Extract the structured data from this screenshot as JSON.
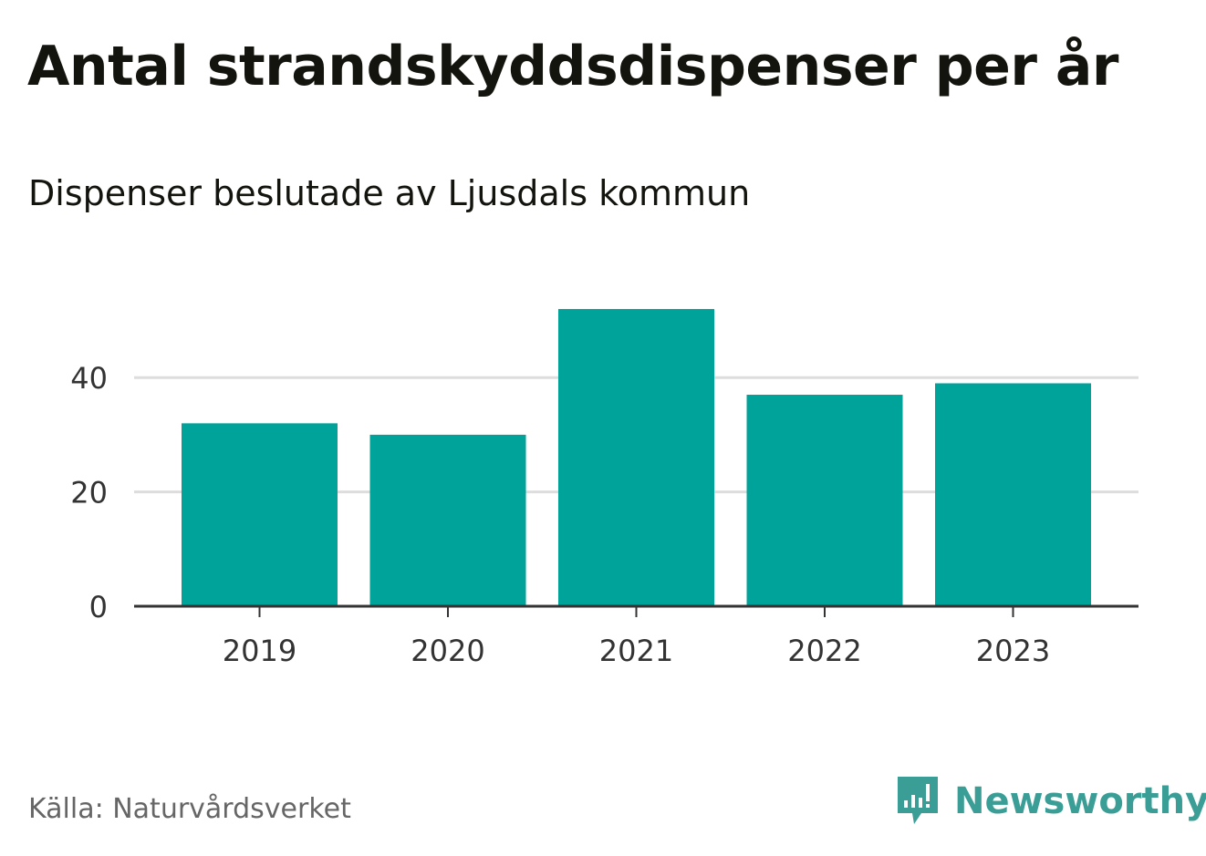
{
  "header": {
    "title": "Antal strandskyddsdispenser per år",
    "subtitle": "Dispenser beslutade av Ljusdals kommun"
  },
  "footer": {
    "source": "Källa: Naturvårdsverket",
    "brand": "Newsworthy"
  },
  "colors": {
    "bar": "#00a39a",
    "grid": "#dddddd",
    "axis": "#333333",
    "brand": "#3a9e96"
  },
  "chart_data": {
    "type": "bar",
    "title": "Antal strandskyddsdispenser per år",
    "subtitle": "Dispenser beslutade av Ljusdals kommun",
    "categories": [
      "2019",
      "2020",
      "2021",
      "2022",
      "2023"
    ],
    "values": [
      32,
      30,
      52,
      37,
      39
    ],
    "xlabel": "",
    "ylabel": "",
    "ylim": [
      0,
      58
    ],
    "yticks": [
      0,
      20,
      40
    ],
    "grid": true,
    "legend": "none"
  }
}
